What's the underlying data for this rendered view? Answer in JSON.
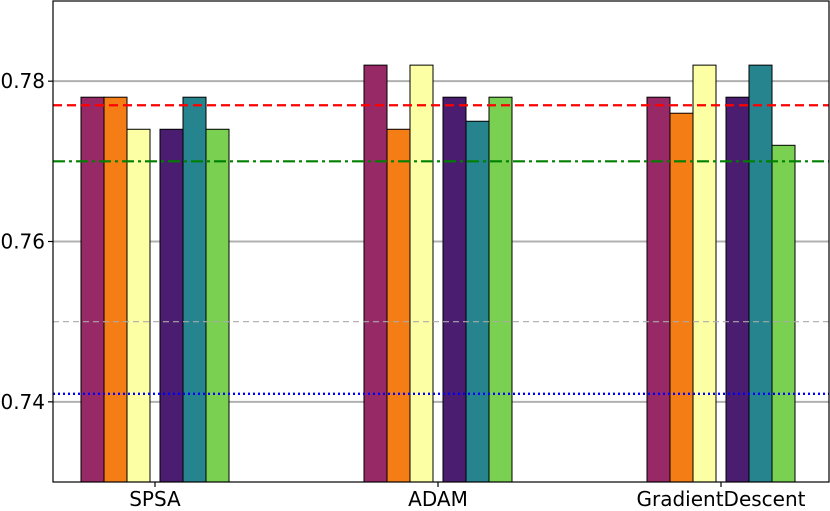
{
  "chart_data": {
    "type": "bar",
    "title": "",
    "xlabel": "",
    "ylabel": "",
    "categories": [
      "SPSA",
      "ADAM",
      "GradientDescent"
    ],
    "ylim": [
      0.73,
      0.79
    ],
    "yticks": [
      0.74,
      0.76,
      0.78
    ],
    "ytick_labels": [
      "0.74",
      "0.76",
      "0.78"
    ],
    "grid": "horizontal major gridlines on",
    "legend": "none",
    "bar_colors": [
      "#962966",
      "#f57d15",
      "#fcffa4",
      "#4a1d70",
      "#25848e",
      "#7ad151"
    ],
    "series": [
      {
        "values": [
          0.778,
          0.782,
          0.778
        ]
      },
      {
        "values": [
          0.778,
          0.774,
          0.776
        ]
      },
      {
        "values": [
          0.774,
          0.782,
          0.782
        ]
      },
      {
        "values": [
          0.774,
          0.778,
          0.778
        ]
      },
      {
        "values": [
          0.778,
          0.775,
          0.782
        ]
      },
      {
        "values": [
          0.774,
          0.778,
          0.772
        ]
      }
    ],
    "reference_lines": [
      {
        "y": 0.777,
        "color": "#ff0000",
        "style": "dashed"
      },
      {
        "y": 0.77,
        "color": "#008000",
        "style": "dash-dot"
      },
      {
        "y": 0.75,
        "color": "#aaaaaa",
        "style": "dashed"
      },
      {
        "y": 0.741,
        "color": "#0000ff",
        "style": "dotted"
      }
    ]
  }
}
